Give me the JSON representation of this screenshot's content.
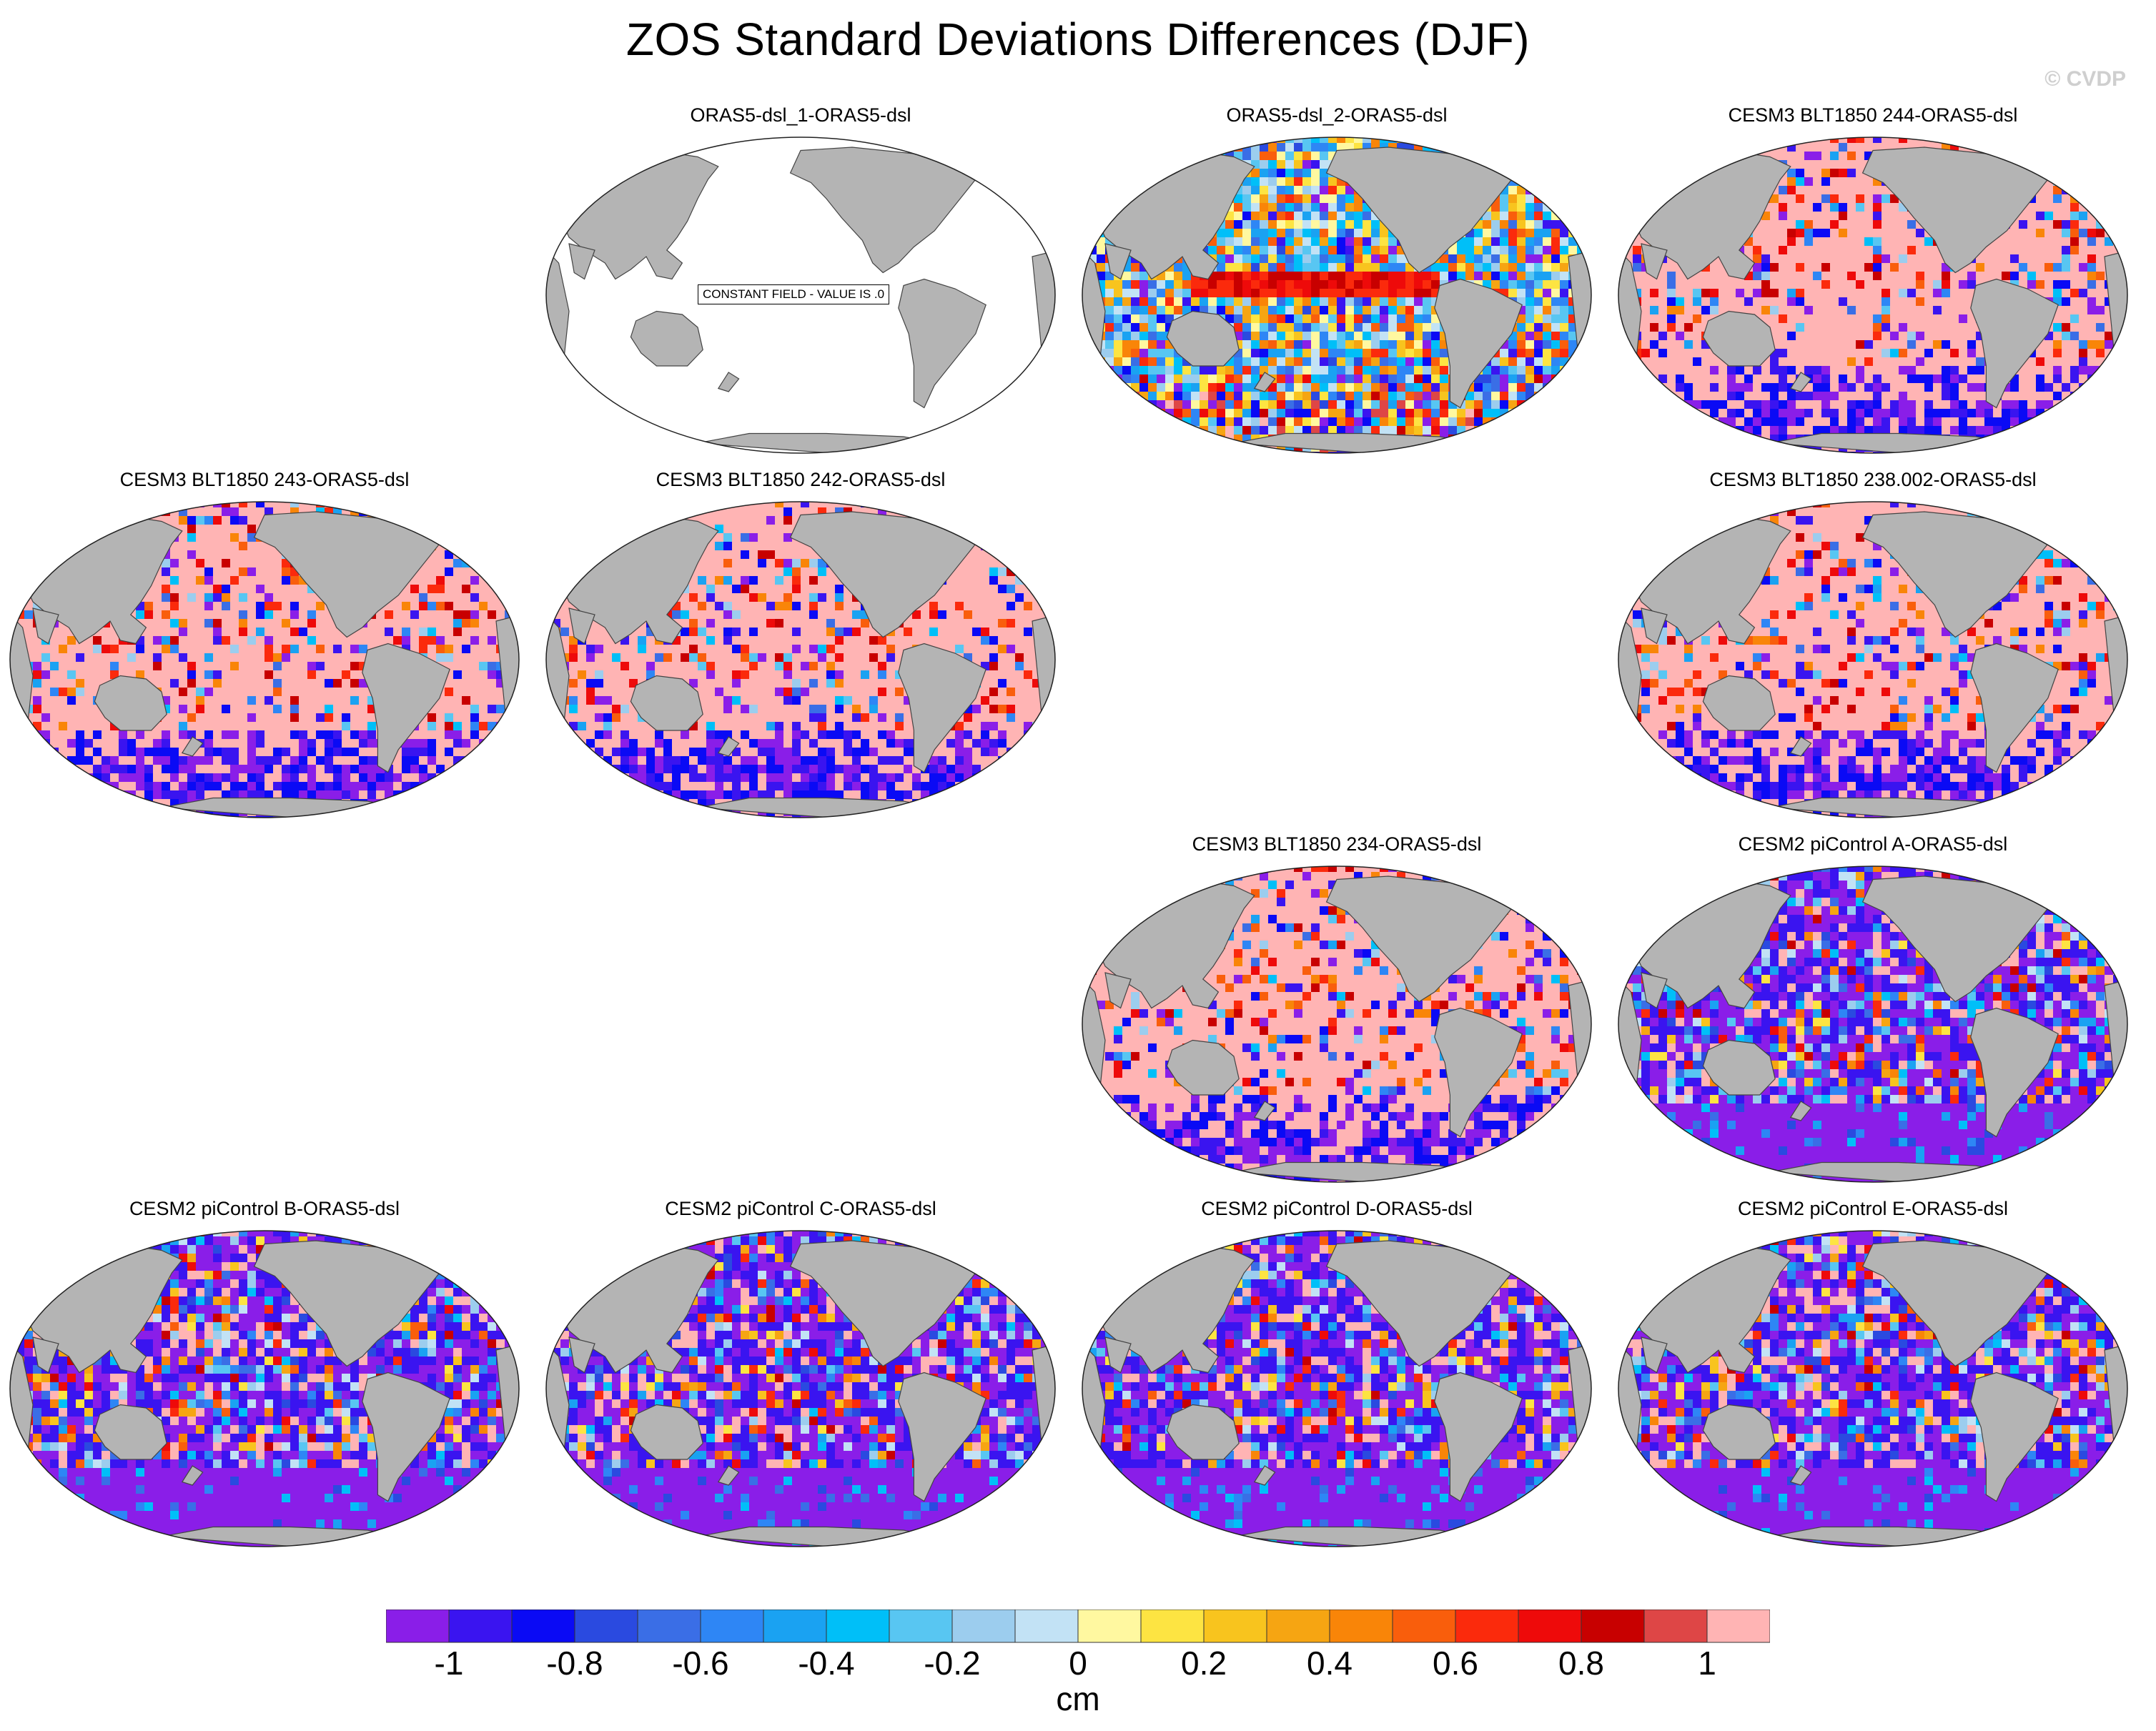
{
  "title": "ZOS Standard Deviations Differences (DJF)",
  "watermark": "© CVDP",
  "constant_field_label": "CONSTANT FIELD - VALUE IS .0",
  "panels": [
    {
      "id": "p1",
      "title": "ORAS5-dsl_1-ORAS5-dsl",
      "pattern": "constant"
    },
    {
      "id": "p2",
      "title": "ORAS5-dsl_2-ORAS5-dsl",
      "pattern": "mixed"
    },
    {
      "id": "p3",
      "title": "CESM3 BLT1850 244-ORAS5-dsl",
      "pattern": "pink"
    },
    {
      "id": "p4",
      "title": "CESM3 BLT1850 243-ORAS5-dsl",
      "pattern": "pink"
    },
    {
      "id": "p5",
      "title": "CESM3 BLT1850 242-ORAS5-dsl",
      "pattern": "pink"
    },
    {
      "id": "p6",
      "title": "CESM3 BLT1850 238.002-ORAS5-dsl",
      "pattern": "pink"
    },
    {
      "id": "p7",
      "title": "CESM3 BLT1850 234-ORAS5-dsl",
      "pattern": "pink"
    },
    {
      "id": "p8",
      "title": "CESM2 piControl A-ORAS5-dsl",
      "pattern": "purple"
    },
    {
      "id": "p9",
      "title": "CESM2 piControl B-ORAS5-dsl",
      "pattern": "purple"
    },
    {
      "id": "p10",
      "title": "CESM2 piControl C-ORAS5-dsl",
      "pattern": "purple"
    },
    {
      "id": "p11",
      "title": "CESM2 piControl D-ORAS5-dsl",
      "pattern": "purple"
    },
    {
      "id": "p12",
      "title": "CESM2 piControl E-ORAS5-dsl",
      "pattern": "purple"
    }
  ],
  "colorbar": {
    "units": "cm",
    "colors": [
      "#8a1ee8",
      "#3a14f0",
      "#0a0af5",
      "#2a4ae0",
      "#3a6ee6",
      "#2e86f5",
      "#1aa2f2",
      "#00bff8",
      "#58c6f2",
      "#9ccdee",
      "#c2e2f5",
      "#fff8a0",
      "#fde442",
      "#f8c41e",
      "#f6a512",
      "#f98508",
      "#f95e0c",
      "#fb2a0c",
      "#ee0a0a",
      "#c80000",
      "#de4646",
      "#ffb4b4"
    ],
    "tick_labels": [
      "-1",
      "-0.8",
      "-0.6",
      "-0.4",
      "-0.2",
      "0",
      "0.2",
      "0.4",
      "0.6",
      "0.8",
      "1"
    ],
    "tick_values": [
      -1,
      -0.8,
      -0.6,
      -0.4,
      -0.2,
      0,
      0.2,
      0.4,
      0.6,
      0.8,
      1
    ]
  }
}
